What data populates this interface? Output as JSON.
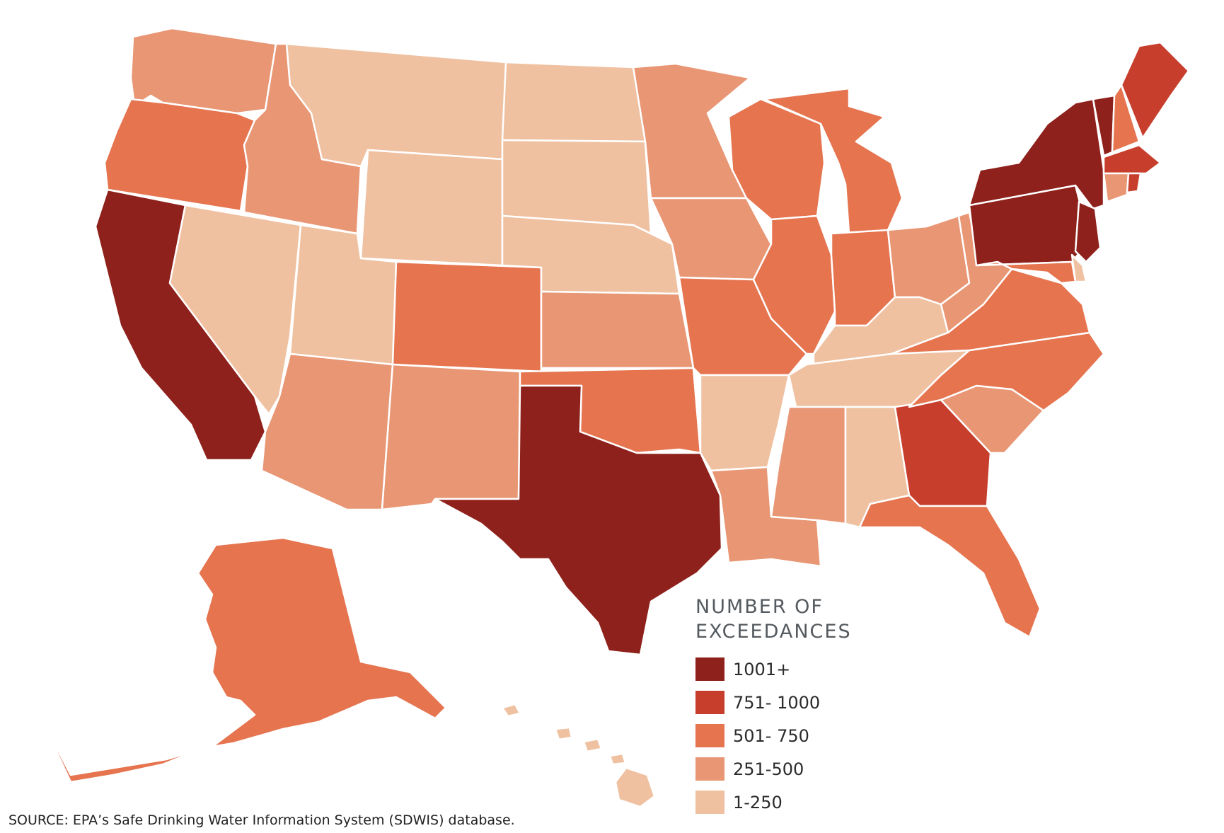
{
  "legend": {
    "title_line1": "NUMBER OF",
    "title_line2": "EXCEEDANCES",
    "items": [
      {
        "label": "1001+",
        "color": "#8e211b"
      },
      {
        "label": "751- 1000",
        "color": "#c73f2c"
      },
      {
        "label": "501- 750",
        "color": "#e5744f"
      },
      {
        "label": "251-500",
        "color": "#e89674"
      },
      {
        "label": "1-250",
        "color": "#efc1a1"
      }
    ]
  },
  "states": {
    "WA": 3,
    "OR": 2,
    "CA": 0,
    "NV": 4,
    "ID": 3,
    "MT": 4,
    "WY": 4,
    "UT": 4,
    "AZ": 3,
    "CO": 2,
    "NM": 3,
    "ND": 4,
    "SD": 4,
    "NE": 4,
    "KS": 3,
    "OK": 2,
    "TX": 0,
    "MN": 3,
    "IA": 3,
    "MO": 2,
    "AR": 4,
    "LA": 3,
    "WI": 2,
    "IL": 2,
    "MI": 2,
    "IN": 2,
    "OH": 3,
    "KY": 4,
    "TN": 4,
    "MS": 3,
    "AL": 4,
    "GA": 1,
    "FL": 2,
    "SC": 3,
    "NC": 2,
    "VA": 2,
    "WV": 3,
    "PA": 0,
    "NY": 0,
    "VT": 0,
    "NH": 2,
    "ME": 1,
    "MA": 1,
    "RI": 1,
    "CT": 3,
    "NJ": 0,
    "DE": 4,
    "MD": 2,
    "AK": 2,
    "HI": 4
  },
  "source": "SOURCE: EPA’s Safe Drinking Water Information System (SDWIS) database."
}
